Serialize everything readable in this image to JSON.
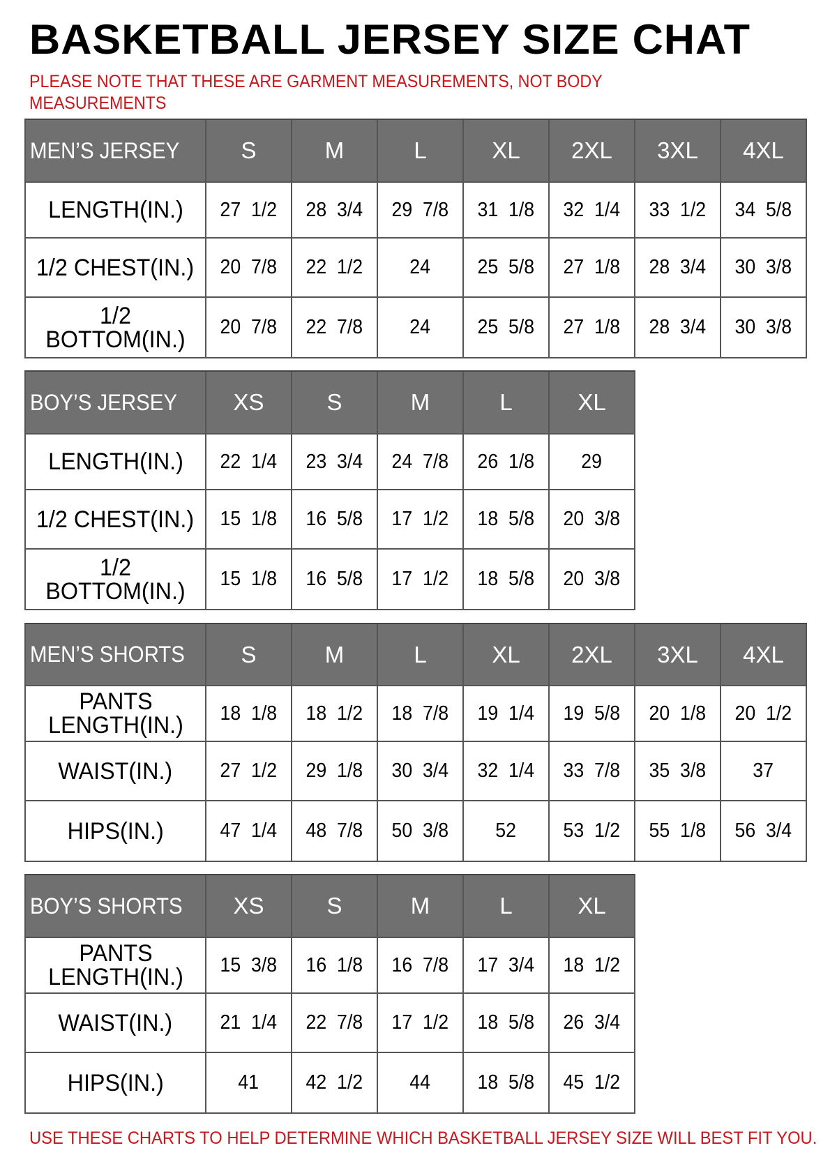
{
  "title": "BASKETBALL JERSEY SIZE CHAT",
  "note": "PLEASE NOTE THAT THESE ARE GARMENT MEASUREMENTS, NOT BODY MEASUREMENTS",
  "footer": "USE THESE CHARTS TO HELP DETERMINE WHICH BASKETBALL JERSEY SIZE WILL BEST FIT YOU.",
  "colors": {
    "header_bg": "#707070",
    "note_red": "#c8161d"
  },
  "tables": [
    {
      "name": "MEN’S JERSEY",
      "sizes": [
        "S",
        "M",
        "L",
        "XL",
        "2XL",
        "3XL",
        "4XL"
      ],
      "rows": [
        {
          "label": "LENGTH(IN.)",
          "values": [
            "27  1/2",
            "28  3/4",
            "29  7/8",
            "31  1/8",
            "32  1/4",
            "33  1/2",
            "34  5/8"
          ]
        },
        {
          "label": "1/2  CHEST(IN.)",
          "values": [
            "20  7/8",
            "22  1/2",
            "24",
            "25  5/8",
            "27  1/8",
            "28  3/4",
            "30  3/8"
          ]
        },
        {
          "label": "1/2  BOTTOM(IN.)",
          "values": [
            "20  7/8",
            "22  7/8",
            "24",
            "25  5/8",
            "27  1/8",
            "28  3/4",
            "30  3/8"
          ]
        }
      ]
    },
    {
      "name": "BOY’S JERSEY",
      "sizes": [
        "XS",
        "S",
        "M",
        "L",
        "XL"
      ],
      "rows": [
        {
          "label": "LENGTH(IN.)",
          "values": [
            "22  1/4",
            "23  3/4",
            "24  7/8",
            "26  1/8",
            "29"
          ]
        },
        {
          "label": "1/2  CHEST(IN.)",
          "values": [
            "15  1/8",
            "16  5/8",
            "17  1/2",
            "18  5/8",
            "20  3/8"
          ]
        },
        {
          "label": "1/2  BOTTOM(IN.)",
          "values": [
            "15  1/8",
            "16  5/8",
            "17  1/2",
            "18  5/8",
            "20  3/8"
          ]
        }
      ]
    },
    {
      "name": "MEN’S SHORTS",
      "sizes": [
        "S",
        "M",
        "L",
        "XL",
        "2XL",
        "3XL",
        "4XL"
      ],
      "rows": [
        {
          "label": "PANTS\nLENGTH(IN.)",
          "values": [
            "18  1/8",
            "18  1/2",
            "18  7/8",
            "19  1/4",
            "19  5/8",
            "20  1/8",
            "20  1/2"
          ]
        },
        {
          "label": "WAIST(IN.)",
          "values": [
            "27  1/2",
            "29  1/8",
            "30  3/4",
            "32  1/4",
            "33  7/8",
            "35  3/8",
            "37"
          ]
        },
        {
          "label": "HIPS(IN.)",
          "values": [
            "47  1/4",
            "48  7/8",
            "50  3/8",
            "52",
            "53  1/2",
            "55  1/8",
            "56  3/4"
          ]
        }
      ]
    },
    {
      "name": "BOY’S SHORTS",
      "sizes": [
        "XS",
        "S",
        "M",
        "L",
        "XL"
      ],
      "rows": [
        {
          "label": "PANTS\nLENGTH(IN.)",
          "values": [
            "15  3/8",
            "16  1/8",
            "16  7/8",
            "17  3/4",
            "18  1/2"
          ]
        },
        {
          "label": "WAIST(IN.)",
          "values": [
            "21  1/4",
            "22  7/8",
            "17  1/2",
            "18  5/8",
            "26  3/4"
          ]
        },
        {
          "label": "HIPS(IN.)",
          "values": [
            "41",
            "42  1/2",
            "44",
            "18  5/8",
            "45  1/2"
          ]
        }
      ]
    }
  ]
}
